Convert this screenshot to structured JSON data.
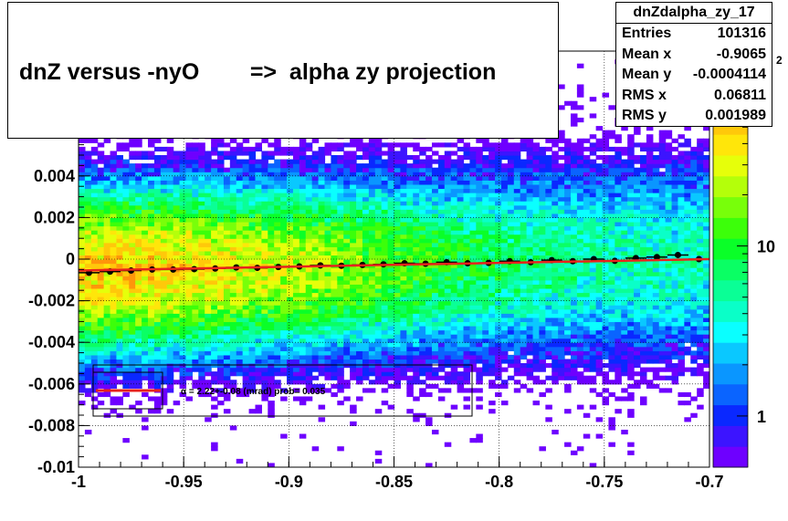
{
  "title": {
    "text": "dnZ versus -nyO        =>  alpha zy projection"
  },
  "stats": {
    "name": "dnZdalpha_zy_17",
    "rows": [
      {
        "label": "Entries",
        "value": "101316"
      },
      {
        "label": "Mean x",
        "value": "-0.9065"
      },
      {
        "label": "Mean y",
        "value": "-0.0004114"
      },
      {
        "label": "RMS x",
        "value": "0.06811"
      },
      {
        "label": "RMS y",
        "value": "0.001989"
      }
    ]
  },
  "fit_legend": {
    "text": "α =   2.22+-0.08 (mrad) prob= 0.035"
  },
  "colors": {
    "fit_line": "#e8231c",
    "profile_points": "#000000",
    "palette": [
      "#6e00ff",
      "#3c14ff",
      "#0a28ff",
      "#0a64ff",
      "#0a96ff",
      "#0ac8ff",
      "#0affff",
      "#0affc8",
      "#0aff96",
      "#0aff64",
      "#0aff28",
      "#3cff0a",
      "#78ff0a",
      "#b4ff0a",
      "#e6ff0a",
      "#ffe60a",
      "#ffc80a",
      "#ff960a",
      "#ff640a",
      "#ff320a"
    ]
  },
  "chart_data": {
    "type": "heatmap",
    "xlim": [
      -1,
      -0.7
    ],
    "ylim": [
      -0.01,
      0.01
    ],
    "x_ticks": [
      "-1",
      "-0.95",
      "-0.9",
      "-0.85",
      "-0.8",
      "-0.75",
      "-0.7"
    ],
    "x_tick_values": [
      -1,
      -0.95,
      -0.9,
      -0.85,
      -0.8,
      -0.75,
      -0.7
    ],
    "y_ticks": [
      "-0.01",
      "-0.008",
      "-0.006",
      "-0.004",
      "-0.002",
      "0",
      "0.002",
      "0.004"
    ],
    "y_tick_values": [
      -0.01,
      -0.008,
      -0.006,
      -0.004,
      -0.002,
      0,
      0.002,
      0.004
    ],
    "z_scale": "log",
    "z_ticks": [
      "1",
      "10"
    ],
    "z_tick_values": [
      1,
      10
    ],
    "z_partial_label": "2",
    "grid": true,
    "fit_line": {
      "x": [
        -1,
        -0.7
      ],
      "y": [
        -0.00055,
        0.0
      ]
    },
    "profile_x": [
      -0.995,
      -0.985,
      -0.975,
      -0.965,
      -0.955,
      -0.945,
      -0.935,
      -0.925,
      -0.915,
      -0.905,
      -0.895,
      -0.885,
      -0.875,
      -0.865,
      -0.855,
      -0.845,
      -0.835,
      -0.825,
      -0.815,
      -0.805,
      -0.795,
      -0.785,
      -0.775,
      -0.765,
      -0.755,
      -0.745,
      -0.735,
      -0.725,
      -0.715,
      -0.705
    ],
    "profile_y": [
      -0.00065,
      -0.0006,
      -0.00055,
      -0.0005,
      -0.0005,
      -0.00048,
      -0.00045,
      -0.0004,
      -0.00042,
      -0.00038,
      -0.00035,
      -0.0003,
      -0.00032,
      -0.00028,
      -0.00025,
      -0.0002,
      -0.00022,
      -0.00015,
      -0.0002,
      -0.00018,
      -0.0001,
      -0.00015,
      -5e-05,
      -0.0001,
      0.0,
      -8e-05,
      5e-05,
      0.0001,
      0.0002,
      0.0
    ]
  }
}
